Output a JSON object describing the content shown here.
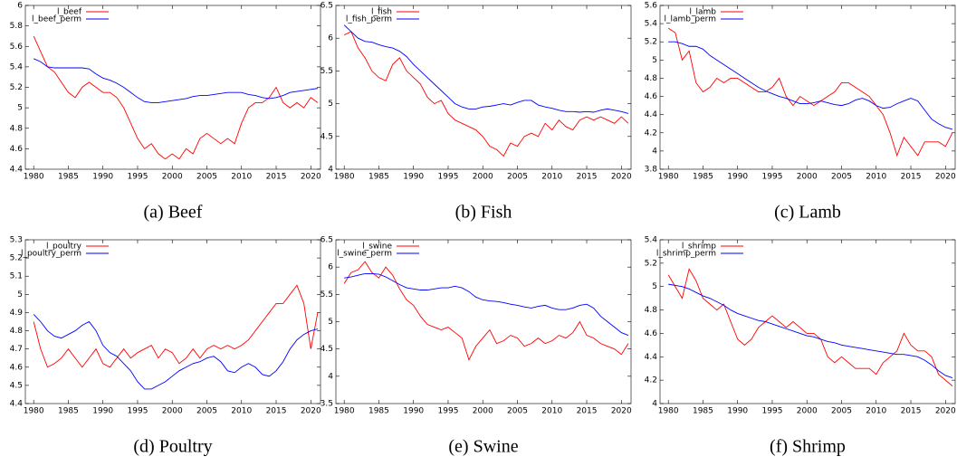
{
  "chart_data": [
    {
      "type": "line",
      "caption": "(a) Beef",
      "x": [
        1980,
        1981,
        1982,
        1983,
        1984,
        1985,
        1986,
        1987,
        1988,
        1989,
        1990,
        1991,
        1992,
        1993,
        1994,
        1995,
        1996,
        1997,
        1998,
        1999,
        2000,
        2001,
        2002,
        2003,
        2004,
        2005,
        2006,
        2007,
        2008,
        2009,
        2010,
        2011,
        2012,
        2013,
        2014,
        2015,
        2016,
        2017,
        2018,
        2019,
        2020,
        2021
      ],
      "xlim": [
        1978.8,
        2021.4
      ],
      "xticks": [
        1980,
        1985,
        1990,
        1995,
        2000,
        2005,
        2010,
        2015,
        2020
      ],
      "ylim": [
        4.4,
        6
      ],
      "yticks": [
        4.4,
        4.6,
        4.8,
        5,
        5.2,
        5.4,
        5.6,
        5.8,
        6
      ],
      "legend": "upper left",
      "series": [
        {
          "name": "l_beef",
          "color": "#ff0000",
          "values": [
            5.7,
            5.55,
            5.4,
            5.35,
            5.25,
            5.15,
            5.1,
            5.2,
            5.25,
            5.2,
            5.15,
            5.15,
            5.1,
            5.0,
            4.85,
            4.7,
            4.6,
            4.65,
            4.55,
            4.5,
            4.55,
            4.5,
            4.6,
            4.55,
            4.7,
            4.75,
            4.7,
            4.65,
            4.7,
            4.65,
            4.85,
            5.0,
            5.05,
            5.05,
            5.1,
            5.2,
            5.05,
            5.0,
            5.05,
            5.0,
            5.1,
            5.05
          ]
        },
        {
          "name": "l_beef_perm",
          "color": "#0000ff",
          "values": [
            5.48,
            5.45,
            5.4,
            5.39,
            5.39,
            5.39,
            5.39,
            5.39,
            5.38,
            5.33,
            5.29,
            5.27,
            5.24,
            5.2,
            5.15,
            5.1,
            5.06,
            5.05,
            5.05,
            5.06,
            5.07,
            5.08,
            5.09,
            5.11,
            5.12,
            5.12,
            5.13,
            5.14,
            5.15,
            5.15,
            5.15,
            5.13,
            5.12,
            5.1,
            5.09,
            5.1,
            5.12,
            5.15,
            5.16,
            5.17,
            5.18,
            5.19
          ]
        }
      ]
    },
    {
      "type": "line",
      "caption": "(b) Fish",
      "x": [
        1980,
        1981,
        1982,
        1983,
        1984,
        1985,
        1986,
        1987,
        1988,
        1989,
        1990,
        1991,
        1992,
        1993,
        1994,
        1995,
        1996,
        1997,
        1998,
        1999,
        2000,
        2001,
        2002,
        2003,
        2004,
        2005,
        2006,
        2007,
        2008,
        2009,
        2010,
        2011,
        2012,
        2013,
        2014,
        2015,
        2016,
        2017,
        2018,
        2019,
        2020,
        2021
      ],
      "xlim": [
        1978.8,
        2021.4
      ],
      "xticks": [
        1980,
        1985,
        1990,
        1995,
        2000,
        2005,
        2010,
        2015,
        2020
      ],
      "ylim": [
        4,
        6.5
      ],
      "yticks": [
        4,
        4.5,
        5,
        5.5,
        6,
        6.5
      ],
      "legend": "upper left",
      "series": [
        {
          "name": "l_fish",
          "color": "#ff0000",
          "values": [
            6.05,
            6.1,
            5.85,
            5.7,
            5.5,
            5.4,
            5.35,
            5.6,
            5.7,
            5.5,
            5.4,
            5.3,
            5.1,
            5.0,
            5.05,
            4.85,
            4.75,
            4.7,
            4.65,
            4.6,
            4.5,
            4.35,
            4.3,
            4.2,
            4.4,
            4.35,
            4.5,
            4.55,
            4.5,
            4.7,
            4.6,
            4.75,
            4.65,
            4.6,
            4.75,
            4.8,
            4.75,
            4.8,
            4.75,
            4.7,
            4.8,
            4.7
          ]
        },
        {
          "name": "l_fish_perm",
          "color": "#0000ff",
          "values": [
            6.2,
            6.1,
            6.0,
            5.95,
            5.94,
            5.9,
            5.87,
            5.85,
            5.8,
            5.72,
            5.6,
            5.5,
            5.4,
            5.3,
            5.2,
            5.1,
            5.0,
            4.95,
            4.92,
            4.92,
            4.95,
            4.96,
            4.98,
            5.0,
            4.98,
            5.02,
            5.05,
            5.05,
            4.98,
            4.95,
            4.93,
            4.9,
            4.88,
            4.88,
            4.87,
            4.88,
            4.87,
            4.9,
            4.92,
            4.9,
            4.88,
            4.85
          ]
        }
      ]
    },
    {
      "type": "line",
      "caption": "(c) Lamb",
      "x": [
        1980,
        1981,
        1982,
        1983,
        1984,
        1985,
        1986,
        1987,
        1988,
        1989,
        1990,
        1991,
        1992,
        1993,
        1994,
        1995,
        1996,
        1997,
        1998,
        1999,
        2000,
        2001,
        2002,
        2003,
        2004,
        2005,
        2006,
        2007,
        2008,
        2009,
        2010,
        2011,
        2012,
        2013,
        2014,
        2015,
        2016,
        2017,
        2018,
        2019,
        2020,
        2021
      ],
      "xlim": [
        1978.8,
        2021.4
      ],
      "xticks": [
        1980,
        1985,
        1990,
        1995,
        2000,
        2005,
        2010,
        2015,
        2020
      ],
      "ylim": [
        3.8,
        5.6
      ],
      "yticks": [
        3.8,
        4,
        4.2,
        4.4,
        4.6,
        4.8,
        5,
        5.2,
        5.4,
        5.6
      ],
      "legend": "upper left",
      "series": [
        {
          "name": "l_lamb",
          "color": "#ff0000",
          "values": [
            5.35,
            5.3,
            5.0,
            5.1,
            4.75,
            4.65,
            4.7,
            4.8,
            4.75,
            4.8,
            4.8,
            4.75,
            4.7,
            4.65,
            4.65,
            4.7,
            4.8,
            4.6,
            4.5,
            4.6,
            4.55,
            4.5,
            4.55,
            4.6,
            4.65,
            4.75,
            4.75,
            4.7,
            4.65,
            4.6,
            4.5,
            4.4,
            4.2,
            3.95,
            4.15,
            4.05,
            3.95,
            4.1,
            4.1,
            4.1,
            4.05,
            4.2
          ]
        },
        {
          "name": "l_lamb_perm",
          "color": "#0000ff",
          "values": [
            5.2,
            5.2,
            5.18,
            5.15,
            5.15,
            5.12,
            5.05,
            5.0,
            4.95,
            4.9,
            4.85,
            4.8,
            4.75,
            4.7,
            4.66,
            4.63,
            4.6,
            4.58,
            4.55,
            4.52,
            4.52,
            4.53,
            4.55,
            4.53,
            4.51,
            4.5,
            4.52,
            4.56,
            4.58,
            4.55,
            4.5,
            4.47,
            4.48,
            4.52,
            4.55,
            4.58,
            4.55,
            4.45,
            4.35,
            4.3,
            4.26,
            4.24
          ]
        }
      ]
    },
    {
      "type": "line",
      "caption": "(d) Poultry",
      "x": [
        1980,
        1981,
        1982,
        1983,
        1984,
        1985,
        1986,
        1987,
        1988,
        1989,
        1990,
        1991,
        1992,
        1993,
        1994,
        1995,
        1996,
        1997,
        1998,
        1999,
        2000,
        2001,
        2002,
        2003,
        2004,
        2005,
        2006,
        2007,
        2008,
        2009,
        2010,
        2011,
        2012,
        2013,
        2014,
        2015,
        2016,
        2017,
        2018,
        2019,
        2020,
        2021
      ],
      "xlim": [
        1978.8,
        2021.4
      ],
      "xticks": [
        1980,
        1985,
        1990,
        1995,
        2000,
        2005,
        2010,
        2015,
        2020
      ],
      "ylim": [
        4.4,
        5.3
      ],
      "yticks": [
        4.4,
        4.5,
        4.6,
        4.7,
        4.8,
        4.9,
        5,
        5.1,
        5.2,
        5.3
      ],
      "legend": "upper left",
      "series": [
        {
          "name": "l_poultry",
          "color": "#ff0000",
          "values": [
            4.85,
            4.7,
            4.6,
            4.62,
            4.65,
            4.7,
            4.65,
            4.6,
            4.65,
            4.7,
            4.62,
            4.6,
            4.65,
            4.7,
            4.65,
            4.68,
            4.7,
            4.72,
            4.65,
            4.7,
            4.68,
            4.62,
            4.65,
            4.7,
            4.65,
            4.7,
            4.72,
            4.7,
            4.72,
            4.7,
            4.72,
            4.75,
            4.8,
            4.85,
            4.9,
            4.95,
            4.95,
            5.0,
            5.05,
            4.95,
            4.7,
            4.9
          ]
        },
        {
          "name": "l_poultry_perm",
          "color": "#0000ff",
          "values": [
            4.89,
            4.85,
            4.8,
            4.77,
            4.76,
            4.78,
            4.8,
            4.83,
            4.85,
            4.8,
            4.72,
            4.68,
            4.66,
            4.62,
            4.58,
            4.52,
            4.48,
            4.48,
            4.5,
            4.52,
            4.55,
            4.58,
            4.6,
            4.62,
            4.63,
            4.65,
            4.66,
            4.63,
            4.58,
            4.57,
            4.6,
            4.62,
            4.6,
            4.56,
            4.55,
            4.58,
            4.63,
            4.7,
            4.75,
            4.78,
            4.8,
            4.81
          ]
        }
      ]
    },
    {
      "type": "line",
      "caption": "(e) Swine",
      "x": [
        1980,
        1981,
        1982,
        1983,
        1984,
        1985,
        1986,
        1987,
        1988,
        1989,
        1990,
        1991,
        1992,
        1993,
        1994,
        1995,
        1996,
        1997,
        1998,
        1999,
        2000,
        2001,
        2002,
        2003,
        2004,
        2005,
        2006,
        2007,
        2008,
        2009,
        2010,
        2011,
        2012,
        2013,
        2014,
        2015,
        2016,
        2017,
        2018,
        2019,
        2020,
        2021
      ],
      "xlim": [
        1978.8,
        2021.4
      ],
      "xticks": [
        1980,
        1985,
        1990,
        1995,
        2000,
        2005,
        2010,
        2015,
        2020
      ],
      "ylim": [
        3.5,
        6.5
      ],
      "yticks": [
        3.5,
        4,
        4.5,
        5,
        5.5,
        6,
        6.5
      ],
      "legend": "upper left",
      "series": [
        {
          "name": "l_swine",
          "color": "#ff0000",
          "values": [
            5.7,
            5.9,
            5.95,
            6.1,
            5.9,
            5.8,
            6.0,
            5.85,
            5.6,
            5.4,
            5.3,
            5.1,
            4.95,
            4.9,
            4.85,
            4.9,
            4.8,
            4.7,
            4.3,
            4.55,
            4.7,
            4.85,
            4.6,
            4.65,
            4.75,
            4.7,
            4.55,
            4.6,
            4.7,
            4.6,
            4.65,
            4.75,
            4.7,
            4.8,
            5.0,
            4.75,
            4.7,
            4.6,
            4.55,
            4.5,
            4.4,
            4.6
          ]
        },
        {
          "name": "l_swine_perm",
          "color": "#0000ff",
          "values": [
            5.8,
            5.82,
            5.85,
            5.88,
            5.88,
            5.87,
            5.82,
            5.75,
            5.68,
            5.62,
            5.6,
            5.58,
            5.58,
            5.6,
            5.62,
            5.62,
            5.65,
            5.62,
            5.55,
            5.45,
            5.4,
            5.38,
            5.37,
            5.35,
            5.32,
            5.3,
            5.27,
            5.25,
            5.28,
            5.3,
            5.25,
            5.22,
            5.22,
            5.25,
            5.3,
            5.32,
            5.25,
            5.1,
            5.0,
            4.9,
            4.8,
            4.75
          ]
        }
      ]
    },
    {
      "type": "line",
      "caption": "(f) Shrimp",
      "x": [
        1980,
        1981,
        1982,
        1983,
        1984,
        1985,
        1986,
        1987,
        1988,
        1989,
        1990,
        1991,
        1992,
        1993,
        1994,
        1995,
        1996,
        1997,
        1998,
        1999,
        2000,
        2001,
        2002,
        2003,
        2004,
        2005,
        2006,
        2007,
        2008,
        2009,
        2010,
        2011,
        2012,
        2013,
        2014,
        2015,
        2016,
        2017,
        2018,
        2019,
        2020,
        2021
      ],
      "xlim": [
        1978.8,
        2021.4
      ],
      "xticks": [
        1980,
        1985,
        1990,
        1995,
        2000,
        2005,
        2010,
        2015,
        2020
      ],
      "ylim": [
        4,
        5.4
      ],
      "yticks": [
        4,
        4.2,
        4.4,
        4.6,
        4.8,
        5,
        5.2,
        5.4
      ],
      "legend": "upper left",
      "series": [
        {
          "name": "l_shrimp",
          "color": "#ff0000",
          "values": [
            5.1,
            5.0,
            4.9,
            5.15,
            5.05,
            4.9,
            4.85,
            4.8,
            4.85,
            4.7,
            4.55,
            4.5,
            4.55,
            4.65,
            4.7,
            4.75,
            4.7,
            4.65,
            4.7,
            4.65,
            4.6,
            4.6,
            4.55,
            4.4,
            4.35,
            4.4,
            4.35,
            4.3,
            4.3,
            4.3,
            4.25,
            4.35,
            4.4,
            4.45,
            4.6,
            4.5,
            4.45,
            4.45,
            4.4,
            4.25,
            4.2,
            4.15
          ]
        },
        {
          "name": "l_shrimp_perm",
          "color": "#0000ff",
          "values": [
            5.02,
            5.01,
            5.0,
            4.98,
            4.95,
            4.92,
            4.9,
            4.87,
            4.84,
            4.8,
            4.77,
            4.75,
            4.73,
            4.71,
            4.7,
            4.68,
            4.66,
            4.64,
            4.62,
            4.6,
            4.58,
            4.57,
            4.55,
            4.53,
            4.52,
            4.5,
            4.49,
            4.48,
            4.47,
            4.46,
            4.45,
            4.44,
            4.43,
            4.42,
            4.42,
            4.41,
            4.4,
            4.37,
            4.33,
            4.28,
            4.24,
            4.22
          ]
        }
      ]
    }
  ]
}
